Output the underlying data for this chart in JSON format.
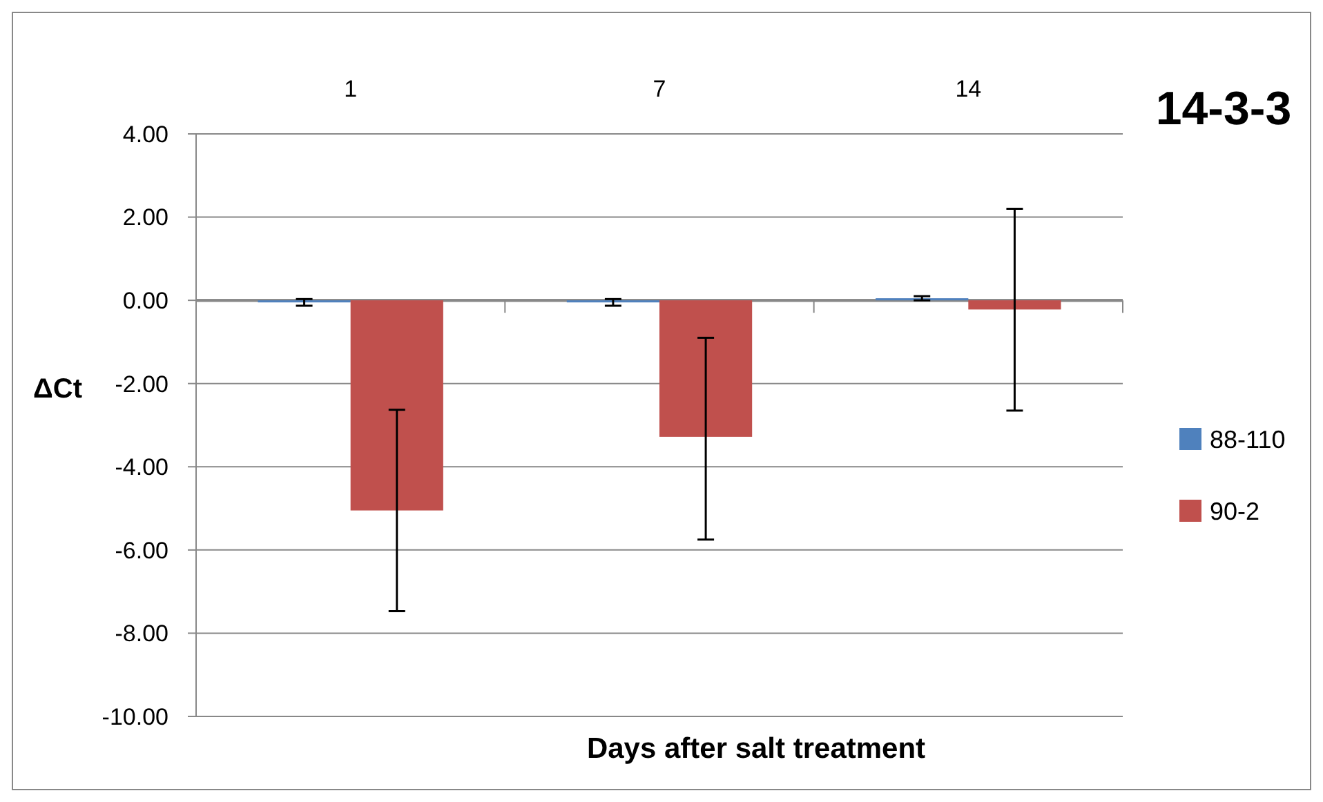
{
  "chart_data": {
    "type": "bar",
    "title": "14-3-3",
    "xlabel": "Days after salt treatment",
    "ylabel": "ΔCt",
    "categories": [
      "1",
      "7",
      "14"
    ],
    "series": [
      {
        "name": "88-110",
        "color": "#4f81bd",
        "values": [
          -0.05,
          -0.05,
          0.05
        ],
        "errors": [
          0.08,
          0.08,
          0.05
        ]
      },
      {
        "name": "90-2",
        "color": "#c0504d",
        "values": [
          -5.05,
          -3.28,
          -0.22
        ],
        "errors": [
          [
            -7.47,
            -2.63
          ],
          [
            -5.75,
            -0.9
          ],
          [
            -2.65,
            2.2
          ]
        ]
      }
    ],
    "ylim": [
      -10,
      4
    ],
    "yticks": [
      {
        "value": -10,
        "label": "-10.00"
      },
      {
        "value": -8,
        "label": "-8.00"
      },
      {
        "value": -6,
        "label": "-6.00"
      },
      {
        "value": -4,
        "label": "-4.00"
      },
      {
        "value": -2,
        "label": "-2.00"
      },
      {
        "value": 0,
        "label": "0.00"
      },
      {
        "value": 2,
        "label": "2.00"
      },
      {
        "value": 4,
        "label": "4.00"
      }
    ],
    "grid": "y",
    "legend": "right"
  }
}
